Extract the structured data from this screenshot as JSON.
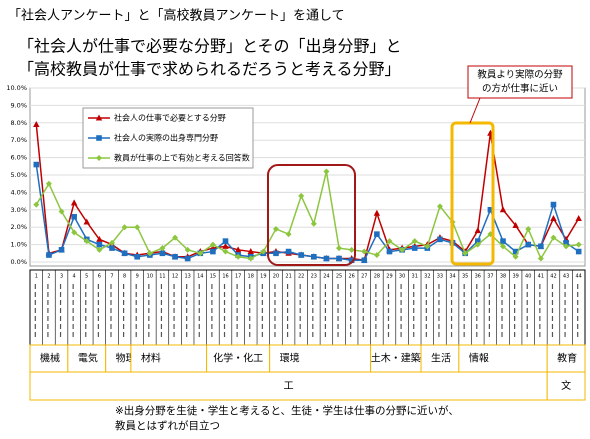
{
  "header": {
    "line1": "「社会人アンケート」と「高校教員アンケート」を通して",
    "line2": "「社会人が仕事で必要な分野」とその「出身分野」と",
    "line3": "「高校教員が仕事で求められるだろうと考える分野」"
  },
  "chart_data": {
    "type": "line",
    "categories": [
      "1",
      "2",
      "3",
      "4",
      "5",
      "6",
      "7",
      "8",
      "9",
      "10",
      "11",
      "12",
      "13",
      "14",
      "15",
      "16",
      "17",
      "18",
      "19",
      "20",
      "21",
      "22",
      "23",
      "24",
      "25",
      "26",
      "27",
      "28",
      "29",
      "30",
      "31",
      "32",
      "33",
      "34",
      "35",
      "36",
      "37",
      "38",
      "39",
      "40",
      "41",
      "42",
      "43",
      "44"
    ],
    "series": [
      {
        "name": "社会人の仕事で必要とする分野",
        "color": "#c00000",
        "marker": "triangle",
        "values": [
          7.9,
          0.5,
          0.7,
          3.4,
          2.3,
          1.3,
          1.0,
          0.5,
          0.4,
          0.5,
          0.6,
          0.3,
          0.3,
          0.6,
          0.8,
          0.9,
          0.7,
          0.6,
          0.5,
          0.6,
          0.5,
          0.4,
          0.3,
          0.2,
          0.2,
          0.2,
          0.1,
          2.8,
          0.7,
          0.8,
          0.9,
          1.0,
          1.4,
          1.2,
          0.6,
          1.8,
          7.4,
          3.0,
          2.1,
          1.0,
          0.9,
          2.5,
          1.3,
          2.5
        ]
      },
      {
        "name": "社会人の実際の出身専門分野",
        "color": "#1f6fc0",
        "marker": "square",
        "values": [
          5.6,
          0.4,
          0.7,
          2.6,
          1.3,
          1.0,
          0.8,
          0.5,
          0.3,
          0.4,
          0.5,
          0.3,
          0.2,
          0.5,
          0.6,
          1.2,
          0.4,
          0.3,
          0.5,
          0.5,
          0.6,
          0.4,
          0.3,
          0.2,
          0.2,
          0.1,
          0.1,
          1.6,
          0.6,
          0.7,
          0.8,
          0.8,
          1.3,
          1.1,
          0.5,
          1.2,
          3.0,
          1.2,
          0.6,
          1.0,
          0.9,
          3.3,
          1.1,
          0.6
        ]
      },
      {
        "name": "教員が仕事の上で有効と考える回答数",
        "color": "#8cc63f",
        "marker": "diamond",
        "values": [
          3.3,
          4.5,
          2.9,
          1.7,
          1.2,
          0.7,
          1.1,
          2.0,
          2.0,
          0.5,
          0.8,
          1.4,
          0.7,
          0.5,
          1.0,
          0.6,
          0.3,
          0.2,
          0.6,
          1.9,
          1.6,
          3.8,
          2.2,
          5.2,
          0.8,
          0.7,
          0.6,
          0.4,
          1.2,
          0.7,
          1.2,
          0.9,
          3.2,
          2.3,
          0.5,
          1.0,
          1.6,
          0.9,
          0.3,
          1.9,
          0.2,
          1.4,
          0.9,
          1.0
        ]
      }
    ],
    "ylim": [
      0,
      10
    ],
    "yticks": [
      {
        "value": 0,
        "label": "0.0%"
      },
      {
        "value": 1,
        "label": "1.0%"
      },
      {
        "value": 2,
        "label": "2.0%"
      },
      {
        "value": 3,
        "label": "3.0%"
      },
      {
        "value": 4,
        "label": "4.0%"
      },
      {
        "value": 5,
        "label": "5.0%"
      },
      {
        "value": 6,
        "label": "6.0%"
      },
      {
        "value": 7,
        "label": "7.0%"
      },
      {
        "value": 8,
        "label": "8.0%"
      },
      {
        "value": 9,
        "label": "9.0%"
      },
      {
        "value": 10,
        "label": "10.0%"
      }
    ],
    "grid": true,
    "annotation": "教員より実際の分野の方が仕事に近い",
    "groups": [
      "機械",
      "電気",
      "物理",
      "材料",
      "化学・化工",
      "環境",
      "土木・建築",
      "生活",
      "情報",
      "教育"
    ],
    "supergroups": [
      "工",
      "文"
    ]
  },
  "footnote": {
    "line1": "※出身分野を生徒・学生と考えると、生徒・学生は仕事の分野に近いが、",
    "line2": "教員とはずれが目立つ"
  }
}
